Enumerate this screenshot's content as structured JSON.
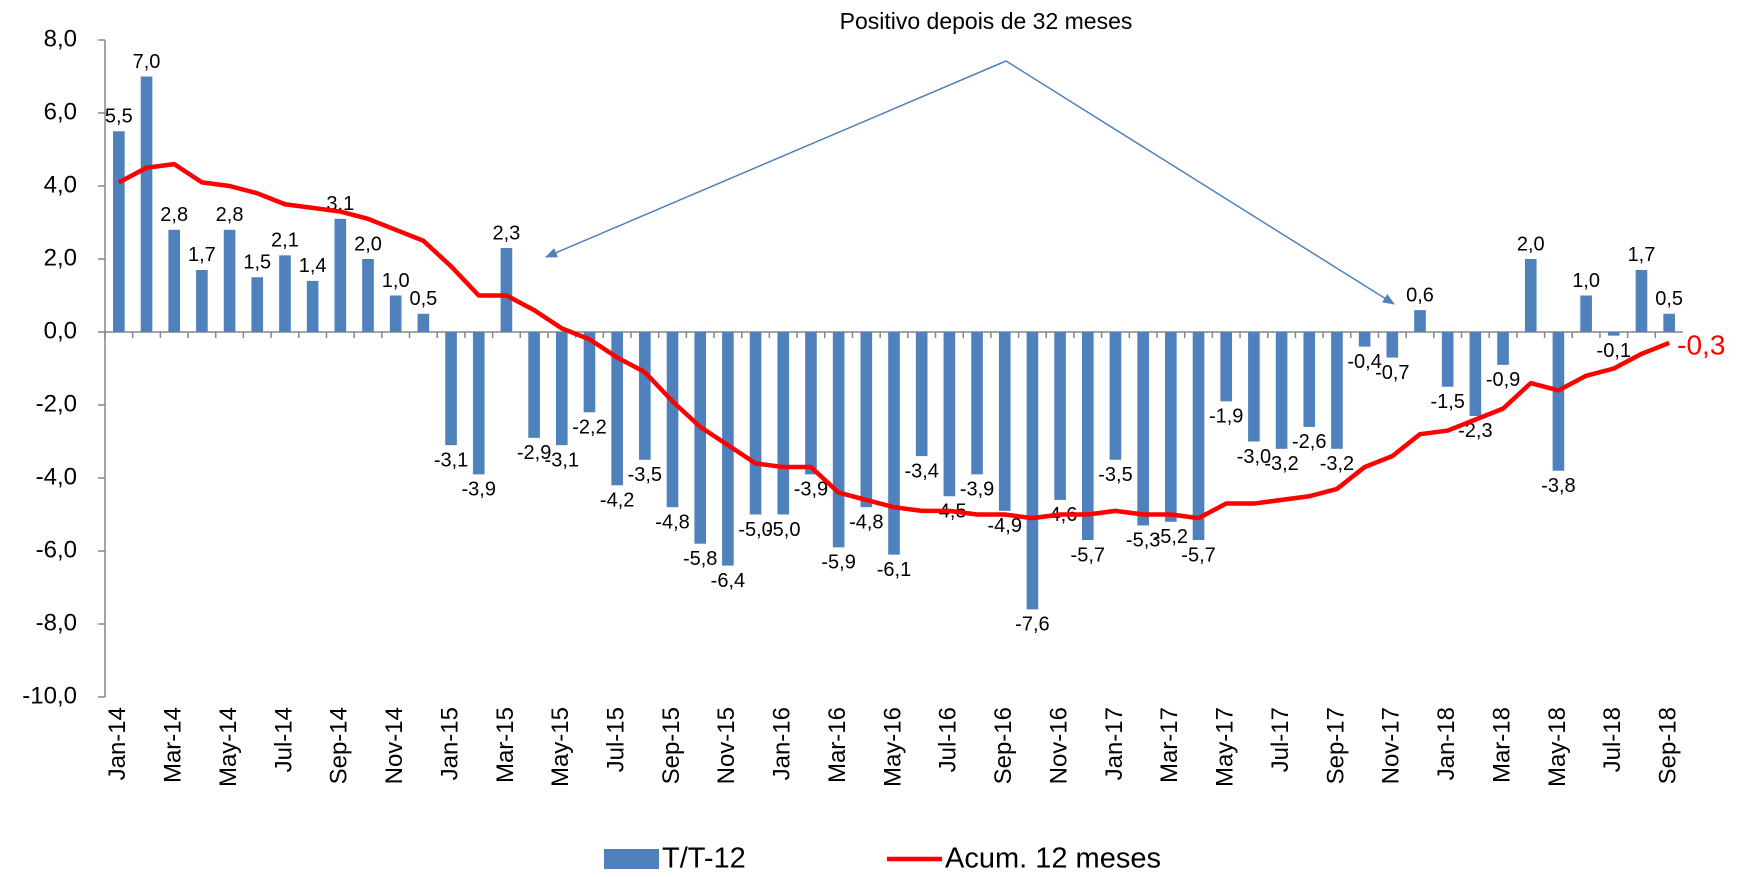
{
  "chart_data": {
    "type": "bar",
    "annotation": "Positivo depois de 32 meses",
    "categories": [
      "Jan-14",
      null,
      "Mar-14",
      null,
      "May-14",
      null,
      "Jul-14",
      null,
      "Sep-14",
      null,
      "Nov-14",
      null,
      "Jan-15",
      null,
      "Mar-15",
      null,
      "May-15",
      null,
      "Jul-15",
      null,
      "Sep-15",
      null,
      "Nov-15",
      null,
      "Jan-16",
      null,
      "Mar-16",
      null,
      "May-16",
      null,
      "Jul-16",
      null,
      "Sep-16",
      null,
      "Nov-16",
      null,
      "Jan-17",
      null,
      "Mar-17",
      null,
      "May-17",
      null,
      "Jul-17",
      null,
      "Sep-17",
      null,
      "Nov-17",
      null,
      "Jan-18",
      null,
      "Mar-18",
      null,
      "May-18",
      null,
      "Jul-18",
      null,
      "Sep-18"
    ],
    "series": [
      {
        "name": "T/T-12",
        "type": "bar",
        "color": "#4f81bd",
        "values": [
          5.5,
          7.0,
          2.8,
          1.7,
          2.8,
          1.5,
          2.1,
          1.4,
          3.1,
          2.0,
          1.0,
          0.5,
          -3.1,
          -3.9,
          2.3,
          -2.9,
          -3.1,
          -2.2,
          -4.2,
          -3.5,
          -4.8,
          -5.8,
          -6.4,
          -5.0,
          -5.0,
          -3.9,
          -5.9,
          -4.8,
          -6.1,
          -3.4,
          -4.5,
          -3.9,
          -4.9,
          -7.6,
          -4.6,
          -5.7,
          -3.5,
          -5.3,
          -5.2,
          -5.7,
          -1.9,
          -3.0,
          -3.2,
          -2.6,
          -3.2,
          -0.4,
          -0.7,
          0.6,
          -1.5,
          -2.3,
          -0.9,
          2.0,
          -3.8,
          1.0,
          -0.1,
          1.7,
          0.5
        ],
        "value_labels": [
          "5,5",
          "7,0",
          "2,8",
          "1,7",
          "2,8",
          "1,5",
          "2,1",
          "1,4",
          "3,1",
          "2,0",
          "1,0",
          "0,5",
          "-3,1",
          "-3,9",
          "2,3",
          "-2,9",
          "-3,1",
          "-2,2",
          "-4,2",
          "-3,5",
          "-4,8",
          "-5,8",
          "-6,4",
          "-5,0",
          "-5,0",
          "-3,9",
          "-5,9",
          "-4,8",
          "-6,1",
          "-3,4",
          "-4,5",
          "-3,9",
          "-4,9",
          "-7,6",
          "-4,6",
          "-5,7",
          "-3,5",
          "-5,3",
          "-5,2",
          "-5,7",
          "-1,9",
          "-3,0",
          "-3,2",
          "-2,6",
          "-3,2",
          "-0,4",
          "-0,7",
          "0,6",
          "-1,5",
          "-2,3",
          "-0,9",
          "2,0",
          "-3,8",
          "1,0",
          "-0,1",
          "1,7",
          "0,5"
        ]
      },
      {
        "name": "Acum. 12 meses",
        "type": "line",
        "color": "#ff0000",
        "values": [
          4.1,
          4.5,
          4.6,
          4.1,
          4.0,
          3.8,
          3.5,
          3.4,
          3.3,
          3.1,
          2.8,
          2.5,
          1.8,
          1.0,
          1.0,
          0.6,
          0.1,
          -0.2,
          -0.7,
          -1.1,
          -1.9,
          -2.6,
          -3.1,
          -3.6,
          -3.7,
          -3.7,
          -4.4,
          -4.6,
          -4.8,
          -4.9,
          -4.9,
          -5.0,
          -5.0,
          -5.1,
          -5.0,
          -5.0,
          -4.9,
          -5.0,
          -5.0,
          -5.1,
          -4.7,
          -4.7,
          -4.6,
          -4.5,
          -4.3,
          -3.7,
          -3.4,
          -2.8,
          -2.7,
          -2.4,
          -2.1,
          -1.4,
          -1.6,
          -1.2,
          -1.0,
          -0.6,
          -0.3
        ],
        "value_labels": [
          null,
          null,
          null,
          null,
          null,
          null,
          null,
          null,
          null,
          null,
          null,
          null,
          null,
          null,
          null,
          null,
          null,
          null,
          null,
          null,
          null,
          null,
          null,
          null,
          null,
          null,
          null,
          null,
          null,
          null,
          null,
          null,
          null,
          null,
          null,
          null,
          null,
          null,
          null,
          null,
          null,
          null,
          null,
          null,
          null,
          null,
          null,
          null,
          null,
          null,
          null,
          null,
          null,
          null,
          null,
          null,
          "-0,3"
        ]
      }
    ],
    "ylim": [
      -10,
      8
    ],
    "yticks": [
      {
        "value": -10,
        "label": "-10,0"
      },
      {
        "value": -8,
        "label": "-8,0"
      },
      {
        "value": -6,
        "label": "-6,0"
      },
      {
        "value": -4,
        "label": "-4,0"
      },
      {
        "value": -2,
        "label": "-2,0"
      },
      {
        "value": 0,
        "label": "0,0"
      },
      {
        "value": 2,
        "label": "2,0"
      },
      {
        "value": 4,
        "label": "4,0"
      },
      {
        "value": 6,
        "label": "6,0"
      },
      {
        "value": 8,
        "label": "8,0"
      }
    ],
    "grid": false,
    "legend": "bottom"
  }
}
